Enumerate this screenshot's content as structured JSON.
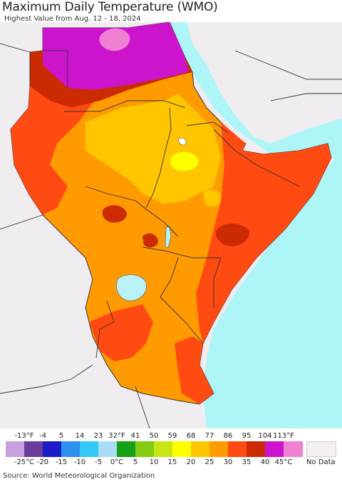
{
  "title": "Maximum Daily Temperature (WMO)",
  "subtitle": "Highest Value from Aug. 12 - 18, 2024",
  "source": "Source: World Meteorological Organization",
  "legend": {
    "fahrenheit_ticks": [
      "-13°F",
      "-4",
      "5",
      "14",
      "23",
      "32°F",
      "41",
      "50",
      "59",
      "68",
      "77",
      "86",
      "95",
      "104",
      "113°F"
    ],
    "celsius_ticks": [
      "-25°C",
      "-20",
      "-15",
      "-10",
      "-5",
      "0°C",
      "5",
      "10",
      "15",
      "20",
      "25",
      "30",
      "35",
      "40",
      "45°C"
    ],
    "colors": [
      "#c7a0e0",
      "#6a3d9a",
      "#1c1cc8",
      "#2f8fef",
      "#33c8f5",
      "#a8dcf5",
      "#16a016",
      "#86cc14",
      "#c8e614",
      "#ffff00",
      "#ffc600",
      "#ff9a00",
      "#ff4a12",
      "#cc2a00",
      "#cc14cc",
      "#f080d2"
    ],
    "no_data_label": "No Data",
    "no_data_color": "#f3eff3"
  },
  "map_colors": {
    "ocean": "#aef5f7",
    "land_background": "#f0edf0",
    "border": "#333333",
    "inner_border": "#888888",
    "lake": "#b8f2f7"
  }
}
